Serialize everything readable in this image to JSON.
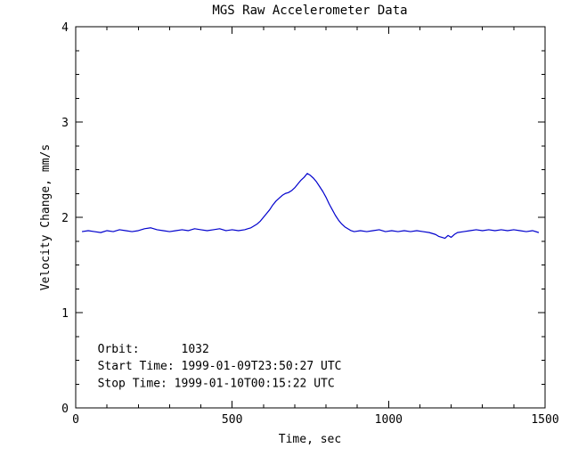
{
  "chart_data": {
    "type": "line",
    "title": "MGS Raw Accelerometer Data",
    "xlabel": "Time, sec",
    "ylabel": "Velocity Change, mm/s",
    "xlim": [
      0,
      1500
    ],
    "ylim": [
      0,
      4
    ],
    "x_ticks": [
      0,
      500,
      1000,
      1500
    ],
    "y_ticks": [
      0,
      1,
      2,
      3,
      4
    ],
    "x_minor_step": 100,
    "y_minor_step": 0.25,
    "grid": false,
    "legend": "none",
    "line_color": "#0000cd",
    "axis_color": "#000000",
    "x": [
      20,
      40,
      60,
      80,
      100,
      120,
      140,
      160,
      180,
      200,
      220,
      240,
      260,
      280,
      300,
      320,
      340,
      360,
      380,
      400,
      420,
      440,
      460,
      480,
      500,
      520,
      540,
      550,
      560,
      570,
      580,
      590,
      600,
      610,
      620,
      630,
      640,
      650,
      660,
      670,
      680,
      690,
      700,
      710,
      720,
      730,
      740,
      750,
      760,
      770,
      780,
      790,
      800,
      810,
      820,
      830,
      840,
      850,
      860,
      870,
      880,
      890,
      910,
      930,
      950,
      970,
      990,
      1010,
      1030,
      1050,
      1070,
      1090,
      1110,
      1130,
      1150,
      1160,
      1170,
      1180,
      1190,
      1200,
      1210,
      1220,
      1240,
      1260,
      1280,
      1300,
      1320,
      1340,
      1360,
      1380,
      1400,
      1420,
      1440,
      1460,
      1480
    ],
    "y": [
      1.85,
      1.86,
      1.85,
      1.84,
      1.86,
      1.85,
      1.87,
      1.86,
      1.85,
      1.86,
      1.88,
      1.89,
      1.87,
      1.86,
      1.85,
      1.86,
      1.87,
      1.86,
      1.88,
      1.87,
      1.86,
      1.87,
      1.88,
      1.86,
      1.87,
      1.86,
      1.87,
      1.88,
      1.89,
      1.91,
      1.93,
      1.96,
      2.0,
      2.04,
      2.08,
      2.13,
      2.17,
      2.2,
      2.23,
      2.25,
      2.26,
      2.28,
      2.31,
      2.35,
      2.39,
      2.42,
      2.46,
      2.44,
      2.41,
      2.37,
      2.32,
      2.27,
      2.21,
      2.14,
      2.08,
      2.02,
      1.97,
      1.93,
      1.9,
      1.88,
      1.86,
      1.85,
      1.86,
      1.85,
      1.86,
      1.87,
      1.85,
      1.86,
      1.85,
      1.86,
      1.85,
      1.86,
      1.85,
      1.84,
      1.82,
      1.8,
      1.79,
      1.78,
      1.81,
      1.79,
      1.82,
      1.84,
      1.85,
      1.86,
      1.87,
      1.86,
      1.87,
      1.86,
      1.87,
      1.86,
      1.87,
      1.86,
      1.85,
      1.86,
      1.84
    ],
    "annotations": [
      {
        "text": "Orbit:      1032",
        "x": 70,
        "y": 0.58
      },
      {
        "text": "Start Time: 1999-01-09T23:50:27 UTC",
        "x": 70,
        "y": 0.4
      },
      {
        "text": "Stop Time: 1999-01-10T00:15:22 UTC",
        "x": 70,
        "y": 0.22
      }
    ]
  }
}
